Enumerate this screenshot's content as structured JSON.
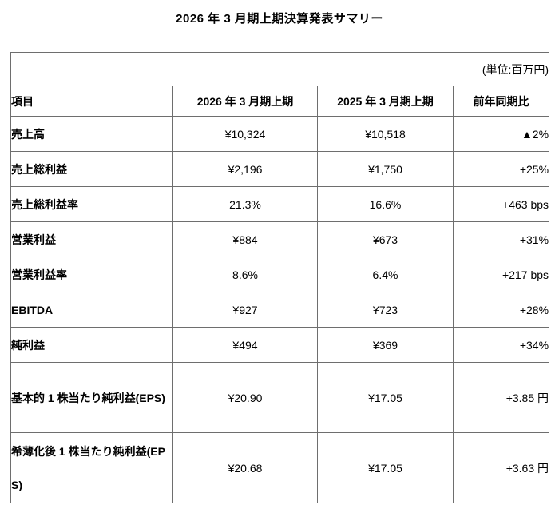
{
  "page": {
    "title": "2026 年 3 月期上期決算発表サマリー",
    "unit_note": "(単位:百万円)"
  },
  "table": {
    "columns": [
      "項目",
      "2026 年 3 月期上期",
      "2025 年 3 月期上期",
      "前年同期比"
    ],
    "rows": [
      {
        "label": "売上高",
        "fy2026": "¥10,324",
        "fy2025": "¥10,518",
        "yoy": "▲2%",
        "tall": false
      },
      {
        "label": "売上総利益",
        "fy2026": "¥2,196",
        "fy2025": "¥1,750",
        "yoy": "+25%",
        "tall": false
      },
      {
        "label": "売上総利益率",
        "fy2026": "21.3%",
        "fy2025": "16.6%",
        "yoy": "+463 bps",
        "tall": false
      },
      {
        "label": "営業利益",
        "fy2026": "¥884",
        "fy2025": "¥673",
        "yoy": "+31%",
        "tall": false
      },
      {
        "label": "営業利益率",
        "fy2026": "8.6%",
        "fy2025": "6.4%",
        "yoy": "+217 bps",
        "tall": false
      },
      {
        "label": "EBITDA",
        "fy2026": "¥927",
        "fy2025": "¥723",
        "yoy": "+28%",
        "tall": false
      },
      {
        "label": "純利益",
        "fy2026": "¥494",
        "fy2025": "¥369",
        "yoy": "+34%",
        "tall": false
      },
      {
        "label": "基本的 1 株当たり純利益(EPS)",
        "fy2026": "¥20.90",
        "fy2025": "¥17.05",
        "yoy": "+3.85 円",
        "tall": true
      },
      {
        "label": "希薄化後 1 株当たり純利益(EPS)",
        "fy2026": "¥20.68",
        "fy2025": "¥17.05",
        "yoy": "+3.63 円",
        "tall": true
      }
    ]
  },
  "colors": {
    "text": "#000000",
    "border": "#6e6e6e",
    "background": "#ffffff"
  }
}
